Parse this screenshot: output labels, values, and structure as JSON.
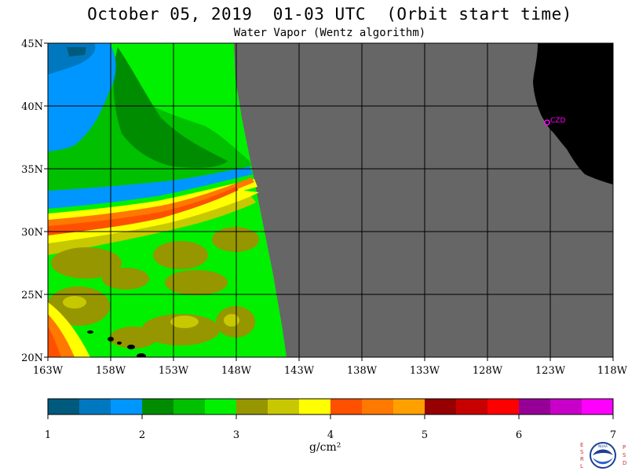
{
  "header": {
    "title": "October 05, 2019  01-03 UTC  (Orbit start time)",
    "subtitle": "Water Vapor (Wentz algorithm)"
  },
  "map": {
    "lat_ticks": [
      "45N",
      "40N",
      "35N",
      "30N",
      "25N",
      "20N"
    ],
    "lon_ticks": [
      "163W",
      "158W",
      "153W",
      "148W",
      "143W",
      "138W",
      "133W",
      "128W",
      "123W",
      "118W"
    ],
    "lat_range": [
      20,
      45
    ],
    "lon_range": [
      -163,
      -118
    ],
    "station_label": "CZD",
    "colors": {
      "no_data": "#666666",
      "land": "#000000",
      "grid": "#000000",
      "station": "#ff00ff"
    }
  },
  "colorbar": {
    "labels": [
      "1",
      "2",
      "3",
      "4",
      "5",
      "6",
      "7"
    ],
    "units": "g/cm²",
    "colors": [
      "#005a7d",
      "#0078c0",
      "#0096ff",
      "#008c00",
      "#00c000",
      "#00f000",
      "#969600",
      "#c8c800",
      "#ffff00",
      "#ff5000",
      "#ff7800",
      "#ffa000",
      "#960000",
      "#c80000",
      "#ff0000",
      "#960096",
      "#c800c8",
      "#ff00ff"
    ]
  },
  "logo": {
    "left_letters": [
      "E",
      "S",
      "R",
      "L"
    ],
    "right_letters": [
      "P",
      "S",
      "D"
    ],
    "emblem_text": "NOAA"
  }
}
